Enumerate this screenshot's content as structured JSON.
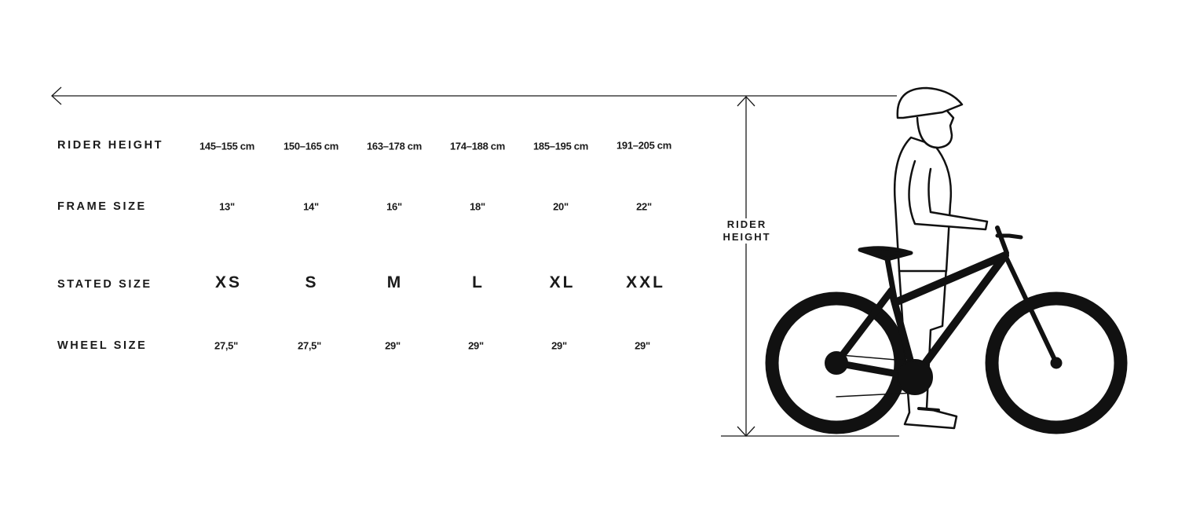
{
  "rows": [
    {
      "label": "RIDER HEIGHT",
      "values": [
        "145–155 cm",
        "150–165 cm",
        "163–178 cm",
        "174–188 cm",
        "185–195 cm",
        "191–205 cm"
      ]
    },
    {
      "label": "FRAME SIZE",
      "values": [
        "13\"",
        "14\"",
        "16\"",
        "18\"",
        "20\"",
        "22\""
      ]
    },
    {
      "label": "STATED SIZE",
      "values": [
        "XS",
        "S",
        "M",
        "L",
        "XL",
        "XXL"
      ]
    },
    {
      "label": "WHEEL SIZE",
      "values": [
        "27,5\"",
        "27,5\"",
        "29\"",
        "29\"",
        "29\"",
        "29\""
      ]
    }
  ],
  "dimension": {
    "line1": "RIDER",
    "line2": "HEIGHT"
  },
  "illustration": "rider-with-bike-icon"
}
